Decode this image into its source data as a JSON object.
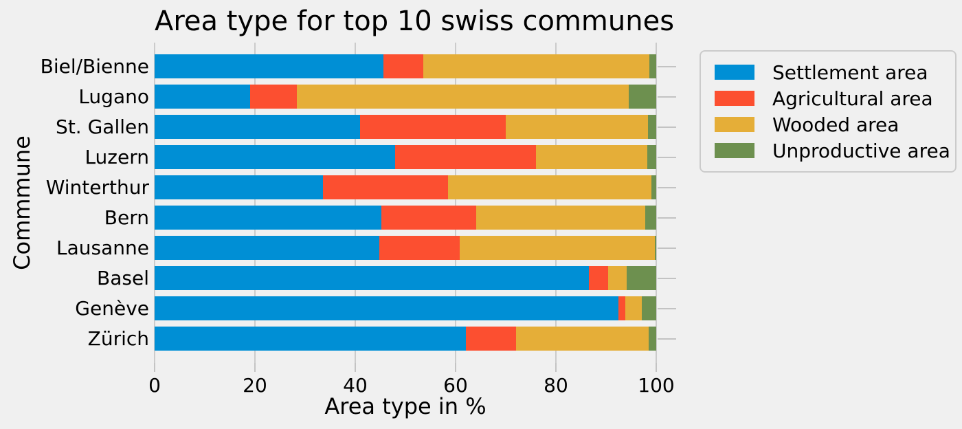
{
  "title": "Area type for top 10 swiss communes",
  "axes": {
    "xlabel": "Area type in %",
    "ylabel": "Commmune",
    "xticks": [
      "0",
      "20",
      "40",
      "60",
      "80",
      "100"
    ]
  },
  "colors": {
    "background": "#f0f0f0",
    "grid": "#cbcbcb",
    "tick": "#c3c3c3",
    "text": "#000000",
    "settlement": "#008fd5",
    "agricultural": "#fc4f30",
    "wooded": "#e5ae38",
    "unproductive": "#6d904f"
  },
  "chart_data": {
    "type": "bar",
    "orientation": "horizontal",
    "stacked": true,
    "title": "Area type for top 10 swiss communes",
    "xlabel": "Area type in %",
    "ylabel": "Commmune",
    "xlim": [
      0,
      100
    ],
    "grid": true,
    "legend_position": "outside upper right",
    "categories": [
      "Biel/Bienne",
      "Lugano",
      "St. Gallen",
      "Luzern",
      "Winterthur",
      "Bern",
      "Lausanne",
      "Basel",
      "Genève",
      "Zürich"
    ],
    "series": [
      {
        "name": "Settlement area",
        "color": "#008fd5",
        "values": [
          45.6,
          19.0,
          41.0,
          48.0,
          33.6,
          45.2,
          44.8,
          86.6,
          92.4,
          62.0
        ]
      },
      {
        "name": "Agricultural area",
        "color": "#fc4f30",
        "values": [
          7.9,
          9.4,
          29.0,
          28.0,
          24.9,
          18.9,
          16.0,
          3.8,
          1.4,
          10.1
        ]
      },
      {
        "name": "Wooded area",
        "color": "#e5ae38",
        "values": [
          45.1,
          66.1,
          28.3,
          22.2,
          40.5,
          33.7,
          38.9,
          3.7,
          3.3,
          26.4
        ]
      },
      {
        "name": "Unproductive area",
        "color": "#6d904f",
        "values": [
          1.4,
          5.5,
          1.7,
          1.8,
          1.0,
          2.2,
          0.3,
          5.9,
          2.9,
          1.5
        ]
      }
    ]
  }
}
